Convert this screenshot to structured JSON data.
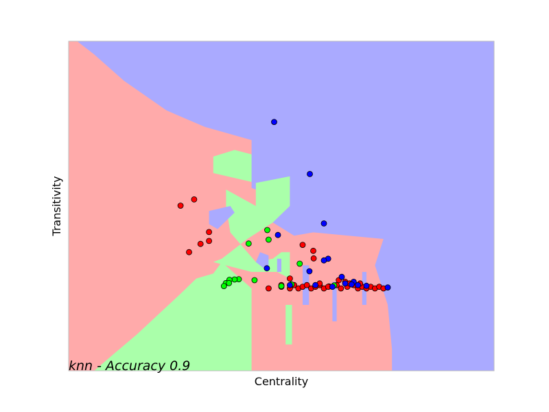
{
  "chart_data": {
    "type": "scatter",
    "title": "",
    "xlabel": "Centrality",
    "ylabel": "Transitivity",
    "annotation": "knn - Accuracy 0.9",
    "xlim": [
      0,
      1
    ],
    "ylim": [
      0,
      1
    ],
    "ticks": "none",
    "grid": false,
    "legend": "none",
    "region_colors": [
      "#ffaaaa",
      "#aaffaa",
      "#aaaaff"
    ],
    "point_colors": [
      "#ff0000",
      "#00ff00",
      "#0000ff"
    ],
    "regions": [
      {
        "class": 0,
        "polygon": [
          [
            0,
            0
          ],
          [
            0.06,
            0
          ],
          [
            0.105,
            0.05
          ],
          [
            0.16,
            0.11
          ],
          [
            0.21,
            0.17
          ],
          [
            0.26,
            0.23
          ],
          [
            0.3,
            0.28
          ],
          [
            0.34,
            0.295
          ],
          [
            0.36,
            0.33
          ],
          [
            0.43,
            0.25
          ],
          [
            0.43,
            0
          ],
          [
            0.76,
            0
          ],
          [
            0.76,
            0.065
          ],
          [
            0.75,
            0.2
          ],
          [
            0.72,
            0.32
          ],
          [
            0.74,
            0.4
          ],
          [
            0.575,
            0.42
          ],
          [
            0.53,
            0.41
          ],
          [
            0.5,
            0.36
          ],
          [
            0.48,
            0.34
          ],
          [
            0.44,
            0.33
          ],
          [
            0.42,
            0.36
          ],
          [
            0.38,
            0.42
          ],
          [
            0.37,
            0.5
          ],
          [
            0.37,
            0.55
          ],
          [
            0.44,
            0.5
          ],
          [
            0.44,
            0.57
          ],
          [
            0.34,
            0.6
          ],
          [
            0.34,
            0.65
          ],
          [
            0.43,
            0.69
          ],
          [
            0.43,
            0.7
          ],
          [
            0.32,
            0.74
          ],
          [
            0.23,
            0.79
          ],
          [
            0.13,
            0.88
          ],
          [
            0.06,
            0.96
          ],
          [
            0.02,
            1
          ],
          [
            0,
            1
          ]
        ]
      },
      {
        "class": 1,
        "polygon": [
          [
            0.06,
            0
          ],
          [
            0.43,
            0
          ],
          [
            0.43,
            0.25
          ],
          [
            0.36,
            0.33
          ],
          [
            0.34,
            0.295
          ],
          [
            0.3,
            0.28
          ],
          [
            0.26,
            0.23
          ],
          [
            0.21,
            0.17
          ],
          [
            0.16,
            0.11
          ],
          [
            0.105,
            0.05
          ]
        ]
      },
      {
        "class": 1,
        "polygon": [
          [
            0.34,
            0.33
          ],
          [
            0.43,
            0.3
          ],
          [
            0.49,
            0.3
          ],
          [
            0.52,
            0.28
          ],
          [
            0.52,
            0.36
          ],
          [
            0.5,
            0.36
          ],
          [
            0.48,
            0.34
          ],
          [
            0.44,
            0.33
          ],
          [
            0.42,
            0.36
          ],
          [
            0.38,
            0.42
          ],
          [
            0.37,
            0.5
          ],
          [
            0.37,
            0.55
          ],
          [
            0.44,
            0.5
          ],
          [
            0.44,
            0.57
          ],
          [
            0.34,
            0.6
          ],
          [
            0.34,
            0.65
          ],
          [
            0.39,
            0.67
          ],
          [
            0.45,
            0.65
          ],
          [
            0.52,
            0.59
          ],
          [
            0.52,
            0.5
          ],
          [
            0.48,
            0.45
          ],
          [
            0.42,
            0.4
          ],
          [
            0.38,
            0.36
          ],
          [
            0.36,
            0.34
          ]
        ]
      },
      {
        "class": 1,
        "polygon": [
          [
            0.51,
            0.08
          ],
          [
            0.525,
            0.08
          ],
          [
            0.525,
            0.2
          ],
          [
            0.51,
            0.2
          ]
        ]
      },
      {
        "class": 2,
        "polygon": [
          [
            0.02,
            1
          ],
          [
            0.06,
            0.96
          ],
          [
            0.13,
            0.88
          ],
          [
            0.23,
            0.79
          ],
          [
            0.32,
            0.74
          ],
          [
            0.43,
            0.7
          ],
          [
            0.43,
            0.555
          ],
          [
            0.44,
            0.55
          ],
          [
            0.44,
            0.57
          ],
          [
            0.52,
            0.59
          ],
          [
            0.52,
            0.5
          ],
          [
            0.48,
            0.45
          ],
          [
            0.53,
            0.41
          ],
          [
            0.575,
            0.42
          ],
          [
            0.74,
            0.4
          ],
          [
            0.72,
            0.32
          ],
          [
            0.75,
            0.2
          ],
          [
            0.76,
            0.065
          ],
          [
            0.76,
            0
          ],
          [
            1,
            0
          ],
          [
            1,
            1
          ]
        ]
      },
      {
        "class": 2,
        "polygon": [
          [
            0.33,
            0.485
          ],
          [
            0.38,
            0.5
          ],
          [
            0.39,
            0.48
          ],
          [
            0.35,
            0.43
          ],
          [
            0.33,
            0.445
          ]
        ]
      },
      {
        "class": 2,
        "polygon": [
          [
            0.44,
            0.33
          ],
          [
            0.46,
            0.31
          ],
          [
            0.47,
            0.32
          ],
          [
            0.47,
            0.35
          ],
          [
            0.45,
            0.36
          ]
        ]
      },
      {
        "class": 2,
        "polygon": [
          [
            0.49,
            0.3
          ],
          [
            0.5,
            0.3
          ],
          [
            0.5,
            0.34
          ],
          [
            0.49,
            0.34
          ]
        ]
      },
      {
        "class": 2,
        "polygon": [
          [
            0.55,
            0.2
          ],
          [
            0.565,
            0.2
          ],
          [
            0.565,
            0.32
          ],
          [
            0.55,
            0.32
          ]
        ]
      },
      {
        "class": 2,
        "polygon": [
          [
            0.62,
            0.15
          ],
          [
            0.63,
            0.15
          ],
          [
            0.63,
            0.27
          ],
          [
            0.62,
            0.27
          ]
        ]
      },
      {
        "class": 2,
        "polygon": [
          [
            0.69,
            0.2
          ],
          [
            0.7,
            0.2
          ],
          [
            0.7,
            0.3
          ],
          [
            0.69,
            0.3
          ]
        ]
      }
    ],
    "series": [
      {
        "class": 0,
        "points": [
          [
            0.295,
            0.52
          ],
          [
            0.263,
            0.501
          ],
          [
            0.33,
            0.421
          ],
          [
            0.33,
            0.394
          ],
          [
            0.31,
            0.385
          ],
          [
            0.283,
            0.36
          ],
          [
            0.575,
            0.364
          ],
          [
            0.55,
            0.382
          ],
          [
            0.576,
            0.341
          ],
          [
            0.612,
            0.256
          ],
          [
            0.47,
            0.25
          ],
          [
            0.5,
            0.26
          ],
          [
            0.52,
            0.25
          ],
          [
            0.53,
            0.26
          ],
          [
            0.54,
            0.25
          ],
          [
            0.55,
            0.255
          ],
          [
            0.56,
            0.26
          ],
          [
            0.57,
            0.25
          ],
          [
            0.58,
            0.255
          ],
          [
            0.59,
            0.26
          ],
          [
            0.6,
            0.25
          ],
          [
            0.61,
            0.255
          ],
          [
            0.63,
            0.26
          ],
          [
            0.64,
            0.25
          ],
          [
            0.655,
            0.255
          ],
          [
            0.67,
            0.26
          ],
          [
            0.68,
            0.25
          ],
          [
            0.69,
            0.255
          ],
          [
            0.7,
            0.25
          ],
          [
            0.71,
            0.255
          ],
          [
            0.72,
            0.25
          ],
          [
            0.73,
            0.255
          ],
          [
            0.74,
            0.25
          ],
          [
            0.52,
            0.28
          ],
          [
            0.59,
            0.265
          ],
          [
            0.635,
            0.275
          ],
          [
            0.65,
            0.27
          ],
          [
            0.66,
            0.265
          ],
          [
            0.685,
            0.265
          ],
          [
            0.5,
            0.255
          ]
        ]
      },
      {
        "class": 1,
        "points": [
          [
            0.467,
            0.427
          ],
          [
            0.47,
            0.398
          ],
          [
            0.423,
            0.386
          ],
          [
            0.543,
            0.325
          ],
          [
            0.4,
            0.278
          ],
          [
            0.39,
            0.277
          ],
          [
            0.378,
            0.276
          ],
          [
            0.3695,
            0.266
          ],
          [
            0.365,
            0.257
          ],
          [
            0.377,
            0.266
          ],
          [
            0.437,
            0.275
          ],
          [
            0.5,
            0.257
          ],
          [
            0.524,
            0.262
          ],
          [
            0.624,
            0.259
          ]
        ]
      },
      {
        "class": 2,
        "points": [
          [
            0.483,
            0.755
          ],
          [
            0.567,
            0.597
          ],
          [
            0.6,
            0.447
          ],
          [
            0.492,
            0.412
          ],
          [
            0.466,
            0.311
          ],
          [
            0.566,
            0.302
          ],
          [
            0.61,
            0.34
          ],
          [
            0.6,
            0.335
          ],
          [
            0.642,
            0.285
          ],
          [
            0.52,
            0.26
          ],
          [
            0.58,
            0.26
          ],
          [
            0.65,
            0.265
          ],
          [
            0.67,
            0.27
          ],
          [
            0.68,
            0.26
          ],
          [
            0.7,
            0.258
          ],
          [
            0.75,
            0.253
          ],
          [
            0.665,
            0.262
          ],
          [
            0.62,
            0.255
          ]
        ]
      }
    ]
  }
}
